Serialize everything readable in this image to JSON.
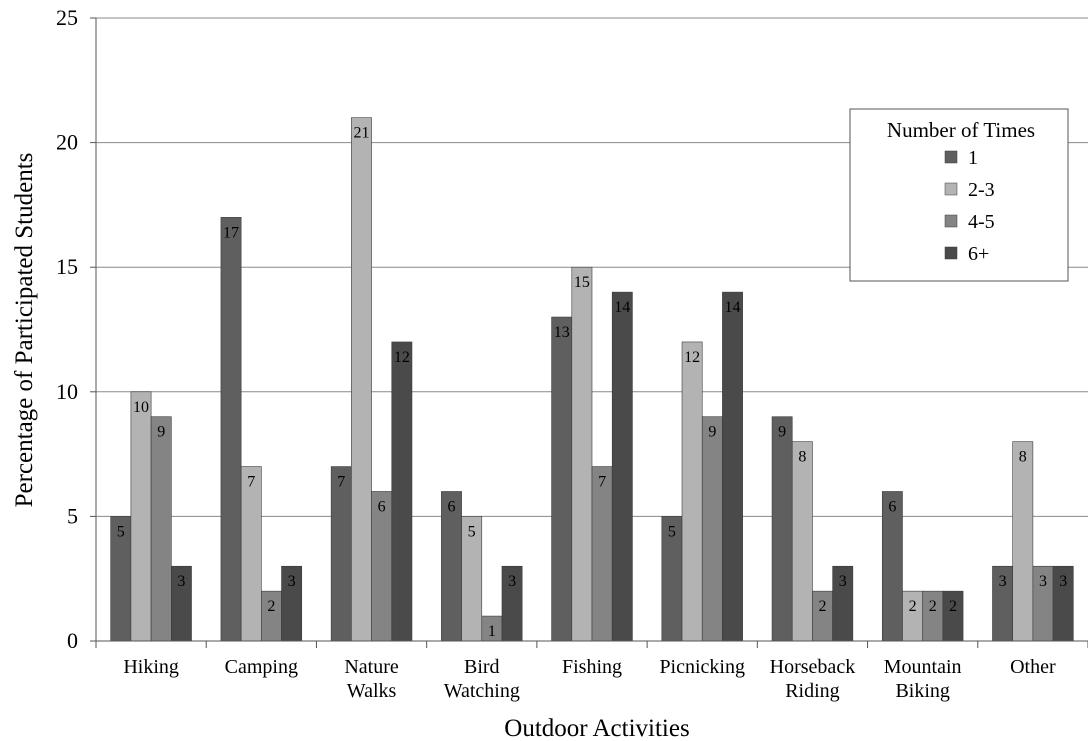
{
  "chart_data": {
    "type": "bar",
    "xlabel": "Outdoor Activities",
    "ylabel": "Percentage of Participated Students",
    "ylim": [
      0,
      25
    ],
    "yticks": [
      0,
      5,
      10,
      15,
      20,
      25
    ],
    "grid": true,
    "legend": {
      "title": "Number of Times",
      "placement": "right"
    },
    "categories": [
      [
        "Hiking"
      ],
      [
        "Camping"
      ],
      [
        "Nature",
        "Walks"
      ],
      [
        "Bird",
        "Watching"
      ],
      [
        "Fishing"
      ],
      [
        "Picnicking"
      ],
      [
        "Horseback",
        "Riding"
      ],
      [
        "Mountain",
        "Biking"
      ],
      [
        "Other"
      ]
    ],
    "series": [
      {
        "name": "1",
        "color": "#5f5f5f",
        "values": [
          5,
          17,
          7,
          6,
          13,
          5,
          9,
          6,
          3
        ]
      },
      {
        "name": "2-3",
        "color": "#b3b3b3",
        "values": [
          10,
          7,
          21,
          5,
          15,
          12,
          8,
          2,
          8
        ]
      },
      {
        "name": "4-5",
        "color": "#848484",
        "values": [
          9,
          2,
          6,
          1,
          7,
          9,
          2,
          2,
          3
        ]
      },
      {
        "name": "6+",
        "color": "#4a4a4a",
        "values": [
          3,
          3,
          12,
          3,
          14,
          14,
          3,
          2,
          3
        ]
      }
    ]
  }
}
